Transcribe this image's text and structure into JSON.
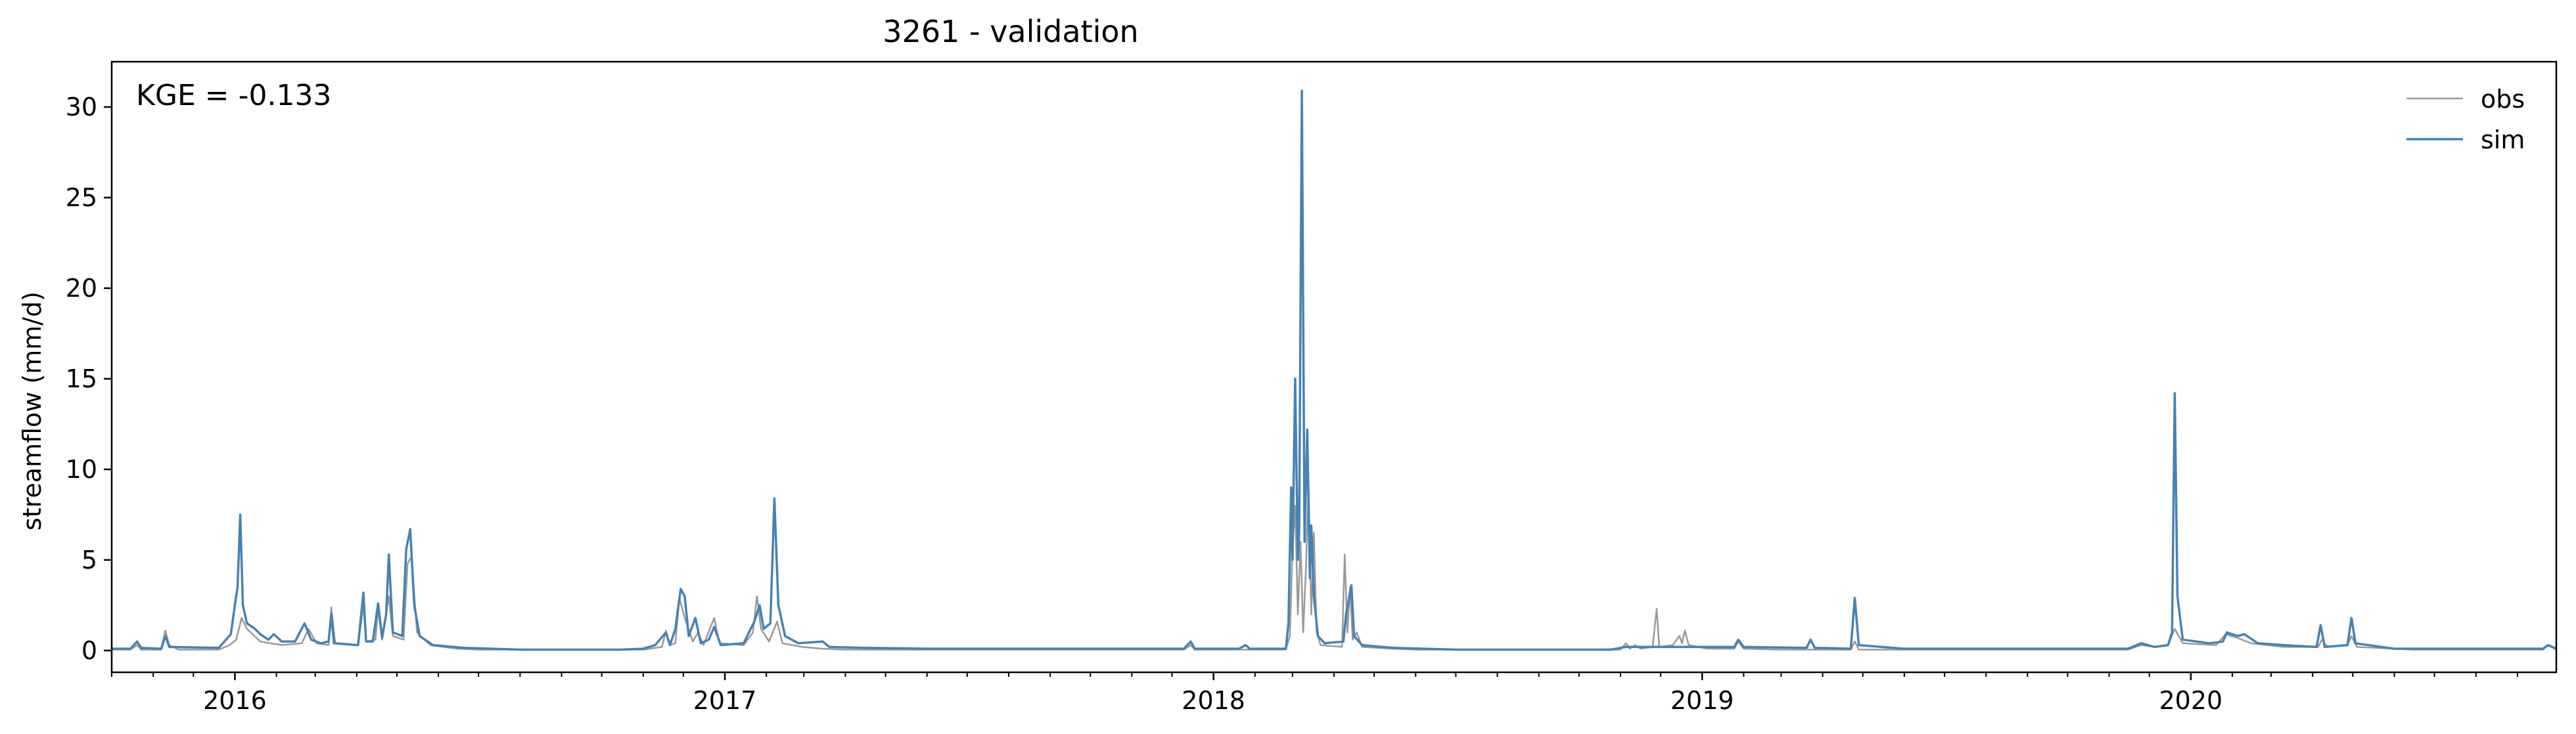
{
  "chart_data": {
    "type": "line",
    "title": "3261 - validation",
    "xlabel": "",
    "ylabel": "streamflow (mm/d)",
    "annotation": "KGE = -0.133",
    "xlim": [
      "2015-10-01",
      "2020-09-30"
    ],
    "ylim": [
      -1.2,
      32.5
    ],
    "yticks": [
      0,
      5,
      10,
      15,
      20,
      25,
      30
    ],
    "xticks": [
      {
        "date": "2016-01-01",
        "label": "2016"
      },
      {
        "date": "2017-01-01",
        "label": "2017"
      },
      {
        "date": "2018-01-01",
        "label": "2018"
      },
      {
        "date": "2019-01-01",
        "label": "2019"
      },
      {
        "date": "2020-01-01",
        "label": "2020"
      }
    ],
    "legend_position": "top-right",
    "grid": false,
    "series": [
      {
        "name": "obs",
        "color": "#999999",
        "points": [
          [
            "2015-10-01",
            0.05
          ],
          [
            "2015-10-15",
            0.05
          ],
          [
            "2015-10-20",
            0.3
          ],
          [
            "2015-10-23",
            0.05
          ],
          [
            "2015-11-07",
            0.05
          ],
          [
            "2015-11-10",
            1.1
          ],
          [
            "2015-11-13",
            0.3
          ],
          [
            "2015-11-20",
            0.05
          ],
          [
            "2015-12-20",
            0.05
          ],
          [
            "2015-12-28",
            0.3
          ],
          [
            "2016-01-02",
            0.6
          ],
          [
            "2016-01-06",
            1.8
          ],
          [
            "2016-01-10",
            1.2
          ],
          [
            "2016-01-20",
            0.5
          ],
          [
            "2016-02-05",
            0.3
          ],
          [
            "2016-02-20",
            0.4
          ],
          [
            "2016-02-25",
            1.2
          ],
          [
            "2016-03-02",
            0.4
          ],
          [
            "2016-03-11",
            0.3
          ],
          [
            "2016-03-13",
            2.4
          ],
          [
            "2016-03-16",
            0.4
          ],
          [
            "2016-04-02",
            0.3
          ],
          [
            "2016-04-06",
            2.5
          ],
          [
            "2016-04-08",
            0.5
          ],
          [
            "2016-04-15",
            0.6
          ],
          [
            "2016-04-17",
            2.3
          ],
          [
            "2016-04-20",
            0.6
          ],
          [
            "2016-04-25",
            3.0
          ],
          [
            "2016-04-28",
            0.8
          ],
          [
            "2016-05-06",
            0.6
          ],
          [
            "2016-05-09",
            4.8
          ],
          [
            "2016-05-12",
            5.2
          ],
          [
            "2016-05-16",
            1.0
          ],
          [
            "2016-05-26",
            0.3
          ],
          [
            "2016-06-15",
            0.1
          ],
          [
            "2016-07-01",
            0.05
          ],
          [
            "2016-11-01",
            0.05
          ],
          [
            "2016-11-15",
            0.2
          ],
          [
            "2016-11-18",
            1.1
          ],
          [
            "2016-11-21",
            0.3
          ],
          [
            "2016-11-25",
            0.4
          ],
          [
            "2016-11-28",
            2.9
          ],
          [
            "2016-12-02",
            1.8
          ],
          [
            "2016-12-08",
            0.5
          ],
          [
            "2016-12-12",
            1.0
          ],
          [
            "2016-12-16",
            0.3
          ],
          [
            "2016-12-24",
            1.8
          ],
          [
            "2016-12-28",
            0.4
          ],
          [
            "2017-01-15",
            0.3
          ],
          [
            "2017-01-22",
            1.0
          ],
          [
            "2017-01-25",
            3.0
          ],
          [
            "2017-01-28",
            1.2
          ],
          [
            "2017-02-03",
            0.5
          ],
          [
            "2017-02-09",
            1.6
          ],
          [
            "2017-02-13",
            0.4
          ],
          [
            "2017-02-28",
            0.2
          ],
          [
            "2017-03-15",
            0.1
          ],
          [
            "2017-04-01",
            0.05
          ],
          [
            "2017-12-10",
            0.05
          ],
          [
            "2017-12-15",
            0.3
          ],
          [
            "2017-12-18",
            0.05
          ],
          [
            "2018-02-24",
            0.05
          ],
          [
            "2018-02-27",
            0.8
          ],
          [
            "2018-03-01",
            5.5
          ],
          [
            "2018-03-03",
            8.0
          ],
          [
            "2018-03-05",
            2.0
          ],
          [
            "2018-03-07",
            6.0
          ],
          [
            "2018-03-09",
            1.0
          ],
          [
            "2018-03-11",
            4.5
          ],
          [
            "2018-03-13",
            9.0
          ],
          [
            "2018-03-15",
            2.0
          ],
          [
            "2018-03-17",
            6.5
          ],
          [
            "2018-03-19",
            1.0
          ],
          [
            "2018-03-22",
            0.3
          ],
          [
            "2018-04-07",
            0.2
          ],
          [
            "2018-04-09",
            5.3
          ],
          [
            "2018-04-11",
            1.0
          ],
          [
            "2018-04-13",
            3.5
          ],
          [
            "2018-04-15",
            0.6
          ],
          [
            "2018-04-18",
            1.0
          ],
          [
            "2018-04-22",
            0.2
          ],
          [
            "2018-05-15",
            0.1
          ],
          [
            "2018-06-01",
            0.05
          ],
          [
            "2018-11-01",
            0.05
          ],
          [
            "2018-11-05",
            0.4
          ],
          [
            "2018-11-08",
            0.1
          ],
          [
            "2018-11-12",
            0.3
          ],
          [
            "2018-11-16",
            0.1
          ],
          [
            "2018-11-25",
            0.2
          ],
          [
            "2018-11-28",
            2.3
          ],
          [
            "2018-11-30",
            0.2
          ],
          [
            "2018-12-10",
            0.3
          ],
          [
            "2018-12-15",
            0.8
          ],
          [
            "2018-12-17",
            0.4
          ],
          [
            "2018-12-19",
            1.1
          ],
          [
            "2018-12-22",
            0.3
          ],
          [
            "2019-01-05",
            0.1
          ],
          [
            "2019-01-25",
            0.1
          ],
          [
            "2019-01-28",
            0.5
          ],
          [
            "2019-02-01",
            0.1
          ],
          [
            "2019-03-01",
            0.05
          ],
          [
            "2019-04-22",
            0.05
          ],
          [
            "2019-04-25",
            0.5
          ],
          [
            "2019-04-28",
            0.05
          ],
          [
            "2019-11-15",
            0.05
          ],
          [
            "2019-11-25",
            0.3
          ],
          [
            "2019-12-05",
            0.2
          ],
          [
            "2019-12-15",
            0.3
          ],
          [
            "2019-12-20",
            1.2
          ],
          [
            "2019-12-26",
            0.4
          ],
          [
            "2020-01-20",
            0.3
          ],
          [
            "2020-01-27",
            0.9
          ],
          [
            "2020-02-05",
            0.7
          ],
          [
            "2020-02-15",
            0.4
          ],
          [
            "2020-03-10",
            0.2
          ],
          [
            "2020-04-05",
            0.2
          ],
          [
            "2020-04-08",
            0.6
          ],
          [
            "2020-04-12",
            0.2
          ],
          [
            "2020-04-27",
            0.3
          ],
          [
            "2020-04-30",
            0.8
          ],
          [
            "2020-05-04",
            0.2
          ],
          [
            "2020-06-15",
            0.05
          ],
          [
            "2020-09-20",
            0.05
          ],
          [
            "2020-09-24",
            0.3
          ],
          [
            "2020-09-30",
            0.05
          ]
        ]
      },
      {
        "name": "sim",
        "color": "#4682b4",
        "points": [
          [
            "2015-10-01",
            0.1
          ],
          [
            "2015-10-15",
            0.1
          ],
          [
            "2015-10-20",
            0.5
          ],
          [
            "2015-10-23",
            0.15
          ],
          [
            "2015-11-07",
            0.1
          ],
          [
            "2015-11-10",
            0.8
          ],
          [
            "2015-11-13",
            0.2
          ],
          [
            "2015-12-20",
            0.15
          ],
          [
            "2015-12-29",
            0.9
          ],
          [
            "2016-01-01",
            2.5
          ],
          [
            "2016-01-03",
            3.5
          ],
          [
            "2016-01-05",
            7.5
          ],
          [
            "2016-01-07",
            2.5
          ],
          [
            "2016-01-10",
            1.5
          ],
          [
            "2016-01-16",
            1.2
          ],
          [
            "2016-01-20",
            0.9
          ],
          [
            "2016-01-26",
            0.6
          ],
          [
            "2016-01-30",
            0.9
          ],
          [
            "2016-02-05",
            0.5
          ],
          [
            "2016-02-15",
            0.5
          ],
          [
            "2016-02-22",
            1.5
          ],
          [
            "2016-02-27",
            0.6
          ],
          [
            "2016-03-05",
            0.4
          ],
          [
            "2016-03-11",
            0.5
          ],
          [
            "2016-03-13",
            2.0
          ],
          [
            "2016-03-15",
            0.4
          ],
          [
            "2016-04-02",
            0.3
          ],
          [
            "2016-04-06",
            3.2
          ],
          [
            "2016-04-08",
            0.5
          ],
          [
            "2016-04-13",
            0.5
          ],
          [
            "2016-04-17",
            2.6
          ],
          [
            "2016-04-20",
            0.7
          ],
          [
            "2016-04-23",
            2.0
          ],
          [
            "2016-04-25",
            5.3
          ],
          [
            "2016-04-28",
            1.0
          ],
          [
            "2016-05-05",
            0.8
          ],
          [
            "2016-05-08",
            5.6
          ],
          [
            "2016-05-11",
            6.7
          ],
          [
            "2016-05-14",
            2.5
          ],
          [
            "2016-05-18",
            0.8
          ],
          [
            "2016-05-28",
            0.3
          ],
          [
            "2016-06-20",
            0.15
          ],
          [
            "2016-08-01",
            0.05
          ],
          [
            "2016-10-15",
            0.05
          ],
          [
            "2016-11-01",
            0.1
          ],
          [
            "2016-11-10",
            0.3
          ],
          [
            "2016-11-18",
            1.0
          ],
          [
            "2016-11-21",
            0.3
          ],
          [
            "2016-11-25",
            1.2
          ],
          [
            "2016-11-29",
            3.4
          ],
          [
            "2016-12-02",
            3.0
          ],
          [
            "2016-12-05",
            0.8
          ],
          [
            "2016-12-10",
            1.8
          ],
          [
            "2016-12-14",
            0.4
          ],
          [
            "2016-12-20",
            0.6
          ],
          [
            "2016-12-24",
            1.3
          ],
          [
            "2016-12-29",
            0.3
          ],
          [
            "2017-01-15",
            0.4
          ],
          [
            "2017-01-23",
            1.6
          ],
          [
            "2017-01-27",
            2.5
          ],
          [
            "2017-01-30",
            1.2
          ],
          [
            "2017-02-04",
            1.5
          ],
          [
            "2017-02-07",
            8.4
          ],
          [
            "2017-02-10",
            2.5
          ],
          [
            "2017-02-15",
            0.8
          ],
          [
            "2017-02-25",
            0.4
          ],
          [
            "2017-03-15",
            0.5
          ],
          [
            "2017-03-20",
            0.2
          ],
          [
            "2017-04-15",
            0.15
          ],
          [
            "2017-06-01",
            0.1
          ],
          [
            "2017-10-01",
            0.1
          ],
          [
            "2017-12-10",
            0.1
          ],
          [
            "2017-12-15",
            0.5
          ],
          [
            "2017-12-18",
            0.1
          ],
          [
            "2018-01-20",
            0.1
          ],
          [
            "2018-01-25",
            0.3
          ],
          [
            "2018-01-28",
            0.1
          ],
          [
            "2018-02-24",
            0.1
          ],
          [
            "2018-02-26",
            1.5
          ],
          [
            "2018-02-28",
            9.0
          ],
          [
            "2018-03-01",
            5.0
          ],
          [
            "2018-03-03",
            15.0
          ],
          [
            "2018-03-05",
            5.0
          ],
          [
            "2018-03-06",
            6.5
          ],
          [
            "2018-03-08",
            30.9
          ],
          [
            "2018-03-10",
            6.0
          ],
          [
            "2018-03-12",
            12.2
          ],
          [
            "2018-03-14",
            4.0
          ],
          [
            "2018-03-15",
            6.9
          ],
          [
            "2018-03-17",
            3.0
          ],
          [
            "2018-03-20",
            0.8
          ],
          [
            "2018-03-25",
            0.4
          ],
          [
            "2018-04-08",
            0.5
          ],
          [
            "2018-04-10",
            2.0
          ],
          [
            "2018-04-12",
            2.8
          ],
          [
            "2018-04-14",
            3.6
          ],
          [
            "2018-04-16",
            0.8
          ],
          [
            "2018-04-22",
            0.3
          ],
          [
            "2018-05-15",
            0.15
          ],
          [
            "2018-07-01",
            0.05
          ],
          [
            "2018-10-25",
            0.05
          ],
          [
            "2018-11-05",
            0.2
          ],
          [
            "2018-11-25",
            0.2
          ],
          [
            "2018-12-15",
            0.2
          ],
          [
            "2019-01-05",
            0.2
          ],
          [
            "2019-01-25",
            0.2
          ],
          [
            "2019-01-28",
            0.6
          ],
          [
            "2019-02-01",
            0.2
          ],
          [
            "2019-03-20",
            0.15
          ],
          [
            "2019-03-23",
            0.6
          ],
          [
            "2019-03-26",
            0.15
          ],
          [
            "2019-04-22",
            0.1
          ],
          [
            "2019-04-25",
            2.9
          ],
          [
            "2019-04-28",
            0.3
          ],
          [
            "2019-06-01",
            0.1
          ],
          [
            "2019-11-15",
            0.1
          ],
          [
            "2019-11-25",
            0.4
          ],
          [
            "2019-12-05",
            0.2
          ],
          [
            "2019-12-15",
            0.3
          ],
          [
            "2019-12-18",
            1.0
          ],
          [
            "2019-12-20",
            14.2
          ],
          [
            "2019-12-22",
            3.0
          ],
          [
            "2019-12-26",
            0.6
          ],
          [
            "2020-01-15",
            0.4
          ],
          [
            "2020-01-25",
            0.5
          ],
          [
            "2020-01-28",
            1.0
          ],
          [
            "2020-02-05",
            0.8
          ],
          [
            "2020-02-10",
            0.9
          ],
          [
            "2020-02-20",
            0.4
          ],
          [
            "2020-03-10",
            0.3
          ],
          [
            "2020-04-04",
            0.2
          ],
          [
            "2020-04-07",
            1.4
          ],
          [
            "2020-04-10",
            0.2
          ],
          [
            "2020-04-27",
            0.3
          ],
          [
            "2020-04-30",
            1.8
          ],
          [
            "2020-05-03",
            0.4
          ],
          [
            "2020-06-01",
            0.1
          ],
          [
            "2020-09-20",
            0.1
          ],
          [
            "2020-09-24",
            0.3
          ],
          [
            "2020-09-30",
            0.1
          ]
        ]
      }
    ]
  }
}
